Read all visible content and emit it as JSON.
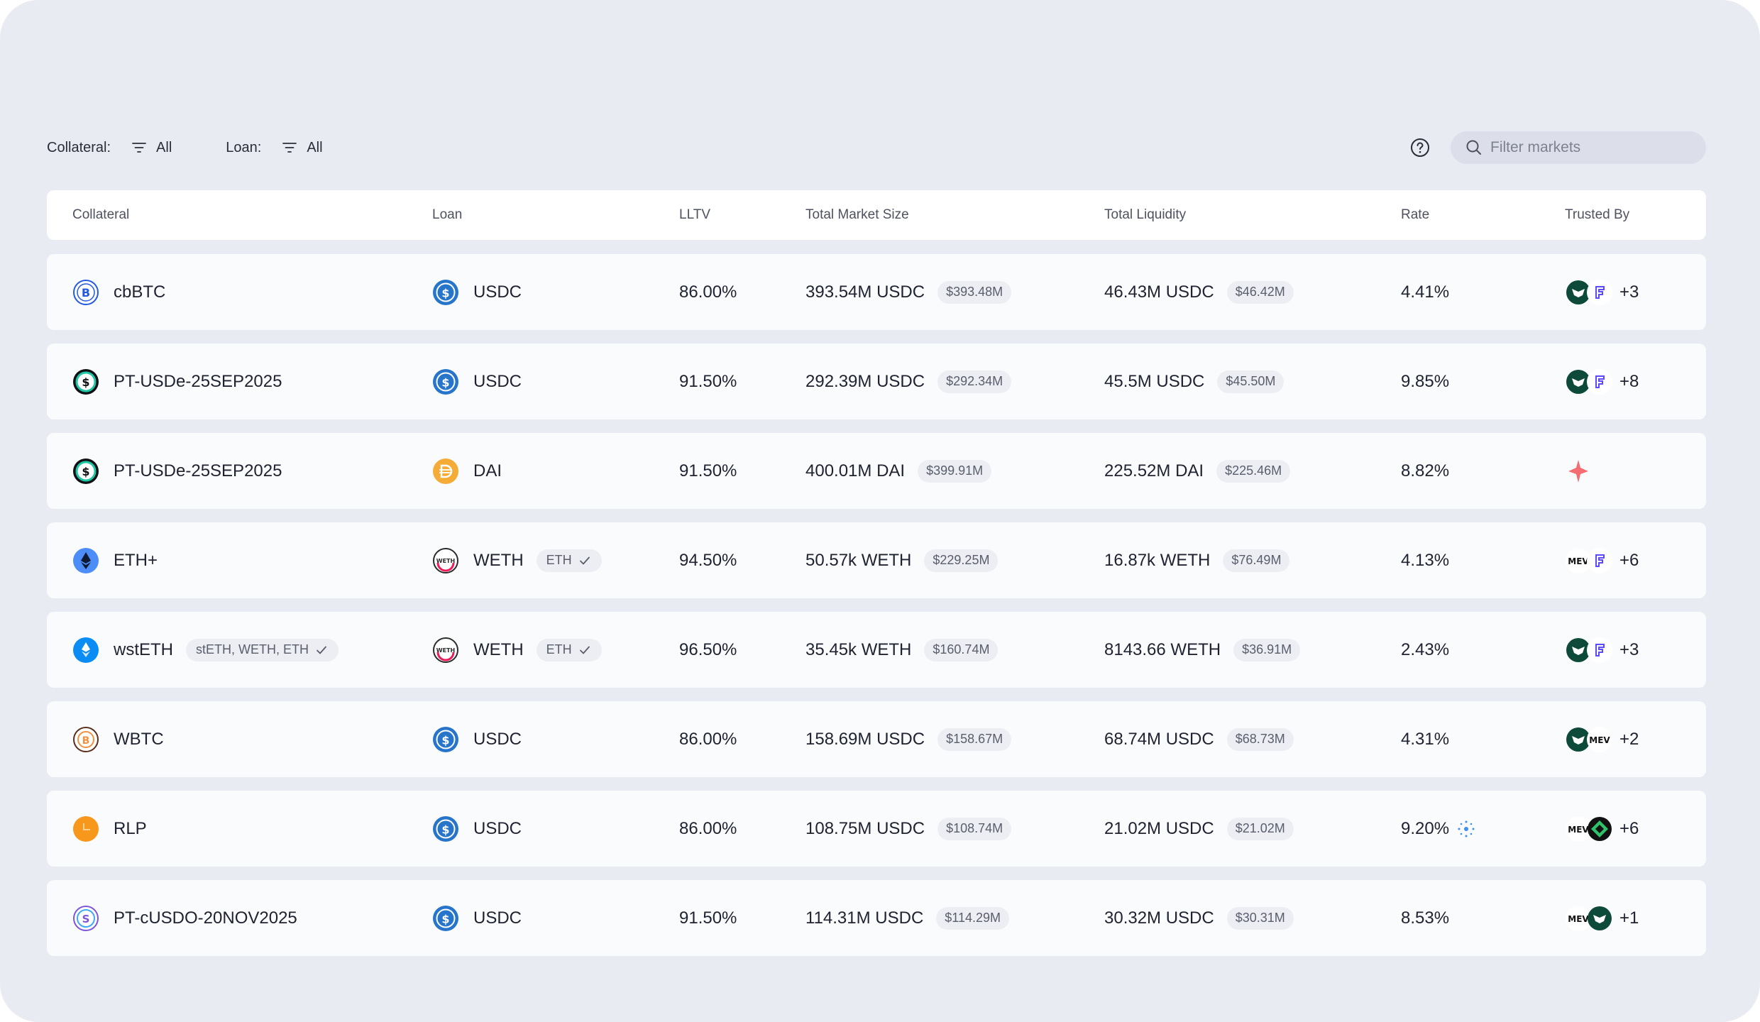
{
  "filters": {
    "collateral_label": "Collateral:",
    "collateral_value": "All",
    "loan_label": "Loan:",
    "loan_value": "All",
    "search_placeholder": "Filter markets"
  },
  "columns": {
    "collateral": "Collateral",
    "loan": "Loan",
    "lltv": "LLTV",
    "total_market_size": "Total Market Size",
    "total_liquidity": "Total Liquidity",
    "rate": "Rate",
    "trusted_by": "Trusted By"
  },
  "rows": [
    {
      "collateral": "cbBTC",
      "collateral_icon": "cbbtc-icon",
      "collateral_tag": "",
      "loan": "USDC",
      "loan_icon": "usdc-icon",
      "loan_tag": "",
      "lltv": "86.00%",
      "size": "393.54M USDC",
      "size_usd": "$393.48M",
      "liquidity": "46.43M USDC",
      "liquidity_usd": "$46.42M",
      "rate": "4.41%",
      "trusted": [
        "steakhouse-icon",
        "gauntlet-icon"
      ],
      "trusted_more": "+3"
    },
    {
      "collateral": "PT-USDe-25SEP2025",
      "collateral_icon": "usde-icon",
      "collateral_tag": "",
      "loan": "USDC",
      "loan_icon": "usdc-icon",
      "loan_tag": "",
      "lltv": "91.50%",
      "size": "292.39M USDC",
      "size_usd": "$292.34M",
      "liquidity": "45.5M USDC",
      "liquidity_usd": "$45.50M",
      "rate": "9.85%",
      "trusted": [
        "steakhouse-icon",
        "gauntlet-icon"
      ],
      "trusted_more": "+8"
    },
    {
      "collateral": "PT-USDe-25SEP2025",
      "collateral_icon": "usde-icon",
      "collateral_tag": "",
      "loan": "DAI",
      "loan_icon": "dai-icon",
      "loan_tag": "",
      "lltv": "91.50%",
      "size": "400.01M DAI",
      "size_usd": "$399.91M",
      "liquidity": "225.52M DAI",
      "liquidity_usd": "$225.46M",
      "rate": "8.82%",
      "trusted": [
        "spark-icon"
      ],
      "trusted_more": ""
    },
    {
      "collateral": "ETH+",
      "collateral_icon": "ethplus-icon",
      "collateral_tag": "",
      "loan": "WETH",
      "loan_icon": "weth-icon",
      "loan_tag": "ETH",
      "lltv": "94.50%",
      "size": "50.57k WETH",
      "size_usd": "$229.25M",
      "liquidity": "16.87k WETH",
      "liquidity_usd": "$76.49M",
      "rate": "4.13%",
      "trusted": [
        "mev-capital-icon",
        "gauntlet-icon"
      ],
      "trusted_more": "+6"
    },
    {
      "collateral": "wstETH",
      "collateral_icon": "wsteth-icon",
      "collateral_tag": "stETH, WETH, ETH",
      "loan": "WETH",
      "loan_icon": "weth-icon",
      "loan_tag": "ETH",
      "lltv": "96.50%",
      "size": "35.45k WETH",
      "size_usd": "$160.74M",
      "liquidity": "8143.66 WETH",
      "liquidity_usd": "$36.91M",
      "rate": "2.43%",
      "trusted": [
        "steakhouse-icon",
        "gauntlet-icon"
      ],
      "trusted_more": "+3"
    },
    {
      "collateral": "WBTC",
      "collateral_icon": "wbtc-icon",
      "collateral_tag": "",
      "loan": "USDC",
      "loan_icon": "usdc-icon",
      "loan_tag": "",
      "lltv": "86.00%",
      "size": "158.69M USDC",
      "size_usd": "$158.67M",
      "liquidity": "68.74M USDC",
      "liquidity_usd": "$68.73M",
      "rate": "4.31%",
      "trusted": [
        "steakhouse-icon",
        "mev-capital-icon"
      ],
      "trusted_more": "+2"
    },
    {
      "collateral": "RLP",
      "collateral_icon": "rlp-icon",
      "collateral_tag": "",
      "loan": "USDC",
      "loan_icon": "usdc-icon",
      "loan_tag": "",
      "lltv": "86.00%",
      "size": "108.75M USDC",
      "size_usd": "$108.74M",
      "liquidity": "21.02M USDC",
      "liquidity_usd": "$21.02M",
      "rate": "9.20%",
      "rate_icon": "sparkle-rewards-icon",
      "trusted": [
        "mev-capital-icon",
        "green-diamond-icon"
      ],
      "trusted_more": "+6"
    },
    {
      "collateral": "PT-cUSDO-20NOV2025",
      "collateral_icon": "cusdo-icon",
      "collateral_tag": "",
      "loan": "USDC",
      "loan_icon": "usdc-icon",
      "loan_tag": "",
      "lltv": "91.50%",
      "size": "114.31M USDC",
      "size_usd": "$114.29M",
      "liquidity": "30.32M USDC",
      "liquidity_usd": "$30.31M",
      "rate": "8.53%",
      "trusted": [
        "mev-capital-icon",
        "steakhouse-icon"
      ],
      "trusted_more": "+1"
    }
  ]
}
